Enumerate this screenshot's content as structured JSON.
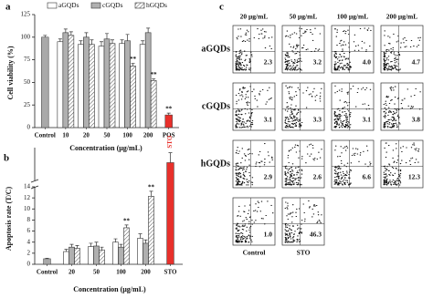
{
  "panel_a": {
    "label": "a",
    "chart_data": {
      "type": "bar",
      "y_label": "Cell viability (%)",
      "x_label": "Concentration (μg/mL)",
      "categories": [
        "Control",
        "10",
        "20",
        "50",
        "100",
        "200",
        "POS"
      ],
      "series": [
        {
          "name": "aGQDs",
          "color": "#ffffff",
          "hatched": false,
          "values": [
            null,
            95,
            92,
            90,
            93,
            92,
            null
          ],
          "errors": [
            null,
            3,
            4,
            5,
            4,
            4,
            null
          ],
          "significance": [
            null,
            null,
            null,
            null,
            null,
            null,
            null
          ]
        },
        {
          "name": "cGQDs",
          "color": "#b0b0b0",
          "hatched": false,
          "values": [
            null,
            105,
            100,
            98,
            96,
            105,
            null
          ],
          "errors": [
            null,
            4,
            5,
            6,
            7,
            5,
            null
          ],
          "significance": [
            null,
            null,
            null,
            null,
            null,
            null,
            null
          ]
        },
        {
          "name": "hGQDs",
          "color": "#ffffff",
          "hatched": true,
          "values": [
            null,
            102,
            92,
            93,
            68,
            52,
            null
          ],
          "errors": [
            null,
            4,
            5,
            4,
            3,
            2,
            null
          ],
          "significance": [
            null,
            null,
            null,
            null,
            "**",
            "**",
            null
          ]
        }
      ],
      "reference_bars": {
        "values": [
          100,
          null,
          null,
          null,
          null,
          null,
          14
        ],
        "colors": [
          "#a9a9a9",
          null,
          null,
          null,
          null,
          null,
          "#e8302b"
        ],
        "errors": [
          2,
          null,
          null,
          null,
          null,
          null,
          2
        ],
        "significance": [
          null,
          null,
          null,
          null,
          null,
          null,
          "**"
        ],
        "labels": [
          null,
          null,
          null,
          null,
          null,
          null,
          null
        ]
      },
      "ylim": [
        0,
        125
      ],
      "yticks": [
        0,
        25,
        50,
        75,
        100,
        125
      ]
    }
  },
  "panel_b": {
    "label": "b",
    "chart_data": {
      "type": "bar",
      "y_label": "Apoptosis rate (T/C)",
      "x_label": "Concentration (μg/mL)",
      "categories": [
        "Control",
        "20",
        "50",
        "100",
        "200",
        "STO"
      ],
      "series": [
        {
          "name": "aGQDs",
          "color": "#ffffff",
          "hatched": false,
          "values": [
            null,
            2.3,
            3.2,
            4.0,
            4.7,
            null
          ],
          "errors": [
            null,
            0.4,
            0.6,
            0.6,
            0.8,
            null
          ],
          "significance": [
            null,
            null,
            null,
            null,
            null,
            null
          ]
        },
        {
          "name": "cGQDs",
          "color": "#b0b0b0",
          "hatched": false,
          "values": [
            null,
            3.1,
            3.3,
            3.1,
            3.8,
            null
          ],
          "errors": [
            null,
            0.5,
            0.7,
            0.5,
            0.6,
            null
          ],
          "significance": [
            null,
            null,
            null,
            null,
            null,
            null
          ]
        },
        {
          "name": "hGQDs",
          "color": "#ffffff",
          "hatched": true,
          "values": [
            null,
            2.9,
            2.6,
            6.6,
            12.3,
            null
          ],
          "errors": [
            null,
            0.5,
            0.5,
            0.5,
            0.9,
            null
          ],
          "significance": [
            null,
            null,
            null,
            "**",
            "**",
            null
          ]
        }
      ],
      "reference_bars": {
        "values": [
          1.0,
          null,
          null,
          null,
          null,
          46.3
        ],
        "colors": [
          "#a9a9a9",
          null,
          null,
          null,
          null,
          "#e8302b"
        ],
        "errors": [
          0.1,
          null,
          null,
          null,
          null,
          9
        ],
        "significance": [
          null,
          null,
          null,
          null,
          null,
          null
        ],
        "labels": [
          null,
          null,
          null,
          null,
          null,
          "STO"
        ]
      },
      "ylim": [
        0,
        14
      ],
      "yticks": [
        0,
        2,
        4,
        6,
        8,
        10,
        12,
        14
      ],
      "upper_ylim": [
        30,
        60
      ],
      "axis_break": true
    }
  },
  "panel_c": {
    "label": "c",
    "columns": [
      "20 μg/mL",
      "50 μg/mL",
      "100 μg/mL",
      "200 μg/mL"
    ],
    "rows": [
      {
        "label": "aGQDs",
        "values": [
          "2.3",
          "3.2",
          "4.0",
          "4.7"
        ]
      },
      {
        "label": "cGQDs",
        "values": [
          "3.1",
          "3.3",
          "3.1",
          "3.8"
        ]
      },
      {
        "label": "hGQDs",
        "values": [
          "2.9",
          "2.6",
          "6.6",
          "12.3"
        ]
      }
    ],
    "controls": [
      {
        "label": "Control",
        "value": "1.0"
      },
      {
        "label": "STO",
        "value": "46.3"
      }
    ]
  }
}
